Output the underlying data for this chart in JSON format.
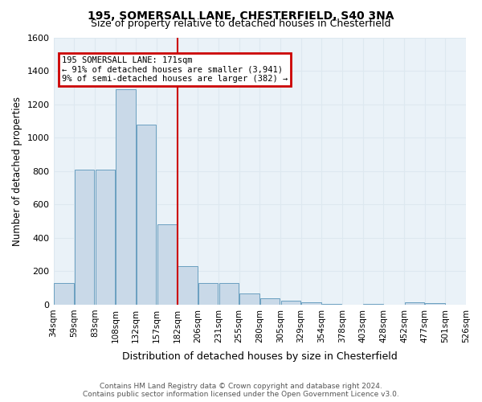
{
  "title": "195, SOMERSALL LANE, CHESTERFIELD, S40 3NA",
  "subtitle": "Size of property relative to detached houses in Chesterfield",
  "xlabel": "Distribution of detached houses by size in Chesterfield",
  "ylabel": "Number of detached properties",
  "footer1": "Contains HM Land Registry data © Crown copyright and database right 2024.",
  "footer2": "Contains public sector information licensed under the Open Government Licence v3.0.",
  "bin_labels": [
    "34sqm",
    "59sqm",
    "83sqm",
    "108sqm",
    "132sqm",
    "157sqm",
    "182sqm",
    "206sqm",
    "231sqm",
    "255sqm",
    "280sqm",
    "305sqm",
    "329sqm",
    "354sqm",
    "378sqm",
    "403sqm",
    "428sqm",
    "452sqm",
    "477sqm",
    "501sqm",
    "526sqm"
  ],
  "bar_values": [
    130,
    810,
    810,
    1290,
    1080,
    480,
    230,
    130,
    130,
    65,
    40,
    25,
    15,
    5,
    0,
    5,
    0,
    15,
    10,
    0
  ],
  "bar_color": "#c9d9e8",
  "bar_edge_color": "#6a9fc0",
  "vline_x": 5.5,
  "vline_color": "#cc0000",
  "annotation_lines": [
    "195 SOMERSALL LANE: 171sqm",
    "← 91% of detached houses are smaller (3,941)",
    "9% of semi-detached houses are larger (382) →"
  ],
  "annotation_box_color": "#cc0000",
  "ylim": [
    0,
    1600
  ],
  "yticks": [
    0,
    200,
    400,
    600,
    800,
    1000,
    1200,
    1400,
    1600
  ],
  "grid_color": "#dde8f0",
  "plot_bg_color": "#eaf2f8"
}
